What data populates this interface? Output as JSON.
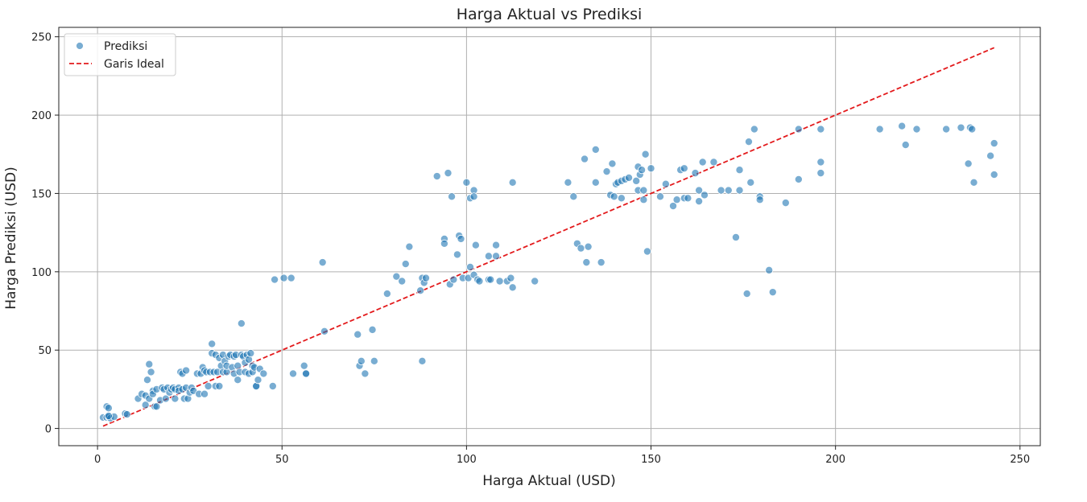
{
  "chart_data": {
    "type": "scatter",
    "title": "Harga Aktual vs Prediksi",
    "xlabel": "Harga Aktual (USD)",
    "ylabel": "Harga Prediksi (USD)",
    "xlim": [
      -10.5,
      255.5
    ],
    "ylim": [
      -11,
      256
    ],
    "xticks": [
      0,
      50,
      100,
      150,
      200,
      250
    ],
    "yticks": [
      0,
      50,
      100,
      150,
      200,
      250
    ],
    "grid": true,
    "legend_position": "top-left",
    "series": [
      {
        "name": "Prediksi",
        "type": "scatter",
        "color": "#1f77b4",
        "points": [
          [
            1.5,
            7
          ],
          [
            2.5,
            7
          ],
          [
            3,
            7.5
          ],
          [
            2.5,
            14
          ],
          [
            3,
            13
          ],
          [
            3.5,
            6.5
          ],
          [
            4.5,
            7.5
          ],
          [
            3,
            8
          ],
          [
            7.5,
            9.5
          ],
          [
            8,
            9
          ],
          [
            11,
            19
          ],
          [
            12,
            22
          ],
          [
            13,
            21
          ],
          [
            13,
            15
          ],
          [
            13.5,
            31
          ],
          [
            14,
            41
          ],
          [
            14.5,
            36
          ],
          [
            14,
            19
          ],
          [
            15,
            24
          ],
          [
            15,
            22
          ],
          [
            15.5,
            14
          ],
          [
            16,
            25
          ],
          [
            16,
            14
          ],
          [
            17,
            18
          ],
          [
            17.5,
            26
          ],
          [
            18,
            25
          ],
          [
            18.5,
            19
          ],
          [
            19,
            26
          ],
          [
            19.5,
            23
          ],
          [
            20,
            25
          ],
          [
            20.5,
            26
          ],
          [
            21,
            25
          ],
          [
            21,
            19
          ],
          [
            22,
            26
          ],
          [
            22,
            24
          ],
          [
            22.5,
            36
          ],
          [
            23,
            25
          ],
          [
            23,
            35
          ],
          [
            23.5,
            19
          ],
          [
            24,
            37
          ],
          [
            24,
            26
          ],
          [
            24.5,
            19
          ],
          [
            25,
            23
          ],
          [
            25.5,
            26
          ],
          [
            26,
            24
          ],
          [
            27,
            35
          ],
          [
            27.5,
            22
          ],
          [
            28,
            35
          ],
          [
            28.5,
            39
          ],
          [
            29,
            22
          ],
          [
            29,
            37
          ],
          [
            29.5,
            36
          ],
          [
            30,
            27
          ],
          [
            30.5,
            36
          ],
          [
            31,
            48
          ],
          [
            31,
            54
          ],
          [
            31.5,
            36
          ],
          [
            32,
            47
          ],
          [
            32,
            27
          ],
          [
            32.5,
            36
          ],
          [
            33,
            45
          ],
          [
            33,
            27
          ],
          [
            33.5,
            40
          ],
          [
            34,
            36
          ],
          [
            34,
            47
          ],
          [
            34.5,
            43
          ],
          [
            35,
            36
          ],
          [
            35,
            40
          ],
          [
            35.5,
            46
          ],
          [
            36,
            47
          ],
          [
            36.5,
            39
          ],
          [
            37,
            35
          ],
          [
            37,
            46
          ],
          [
            37.5,
            47
          ],
          [
            38,
            40
          ],
          [
            38,
            31
          ],
          [
            38.5,
            36
          ],
          [
            39,
            67
          ],
          [
            39,
            47
          ],
          [
            39.5,
            46
          ],
          [
            40,
            42
          ],
          [
            40,
            36
          ],
          [
            40.5,
            47
          ],
          [
            41,
            35
          ],
          [
            41,
            44
          ],
          [
            41.5,
            48
          ],
          [
            42,
            36
          ],
          [
            42,
            40
          ],
          [
            42.5,
            39
          ],
          [
            43,
            27
          ],
          [
            43,
            27
          ],
          [
            43.5,
            31
          ],
          [
            44,
            38
          ],
          [
            45,
            35
          ],
          [
            47.5,
            27
          ],
          [
            48,
            95
          ],
          [
            50.5,
            96
          ],
          [
            52.5,
            96
          ],
          [
            53,
            35
          ],
          [
            56,
            40
          ],
          [
            56.5,
            35
          ],
          [
            56.5,
            35
          ],
          [
            61,
            106
          ],
          [
            61.5,
            62
          ],
          [
            70.5,
            60
          ],
          [
            71,
            40
          ],
          [
            71.5,
            43
          ],
          [
            72.5,
            35
          ],
          [
            74.5,
            63
          ],
          [
            75,
            43
          ],
          [
            78.5,
            86
          ],
          [
            81,
            97
          ],
          [
            82.5,
            94
          ],
          [
            83.5,
            105
          ],
          [
            84.5,
            116
          ],
          [
            87.5,
            88
          ],
          [
            88,
            96
          ],
          [
            88,
            43
          ],
          [
            88.5,
            93
          ],
          [
            89,
            96
          ],
          [
            92,
            161
          ],
          [
            94,
            121
          ],
          [
            94,
            118
          ],
          [
            95,
            163
          ],
          [
            95.5,
            92
          ],
          [
            96,
            148
          ],
          [
            96.5,
            95
          ],
          [
            97.5,
            111
          ],
          [
            98,
            123
          ],
          [
            98.5,
            121
          ],
          [
            99,
            96
          ],
          [
            100,
            157
          ],
          [
            100.5,
            96
          ],
          [
            101,
            103
          ],
          [
            101,
            147
          ],
          [
            102,
            152
          ],
          [
            102,
            148
          ],
          [
            102,
            98
          ],
          [
            102.5,
            117
          ],
          [
            103,
            95
          ],
          [
            103.5,
            94
          ],
          [
            106,
            110
          ],
          [
            106,
            95
          ],
          [
            106.5,
            95
          ],
          [
            108,
            110
          ],
          [
            108,
            117
          ],
          [
            109,
            94
          ],
          [
            111,
            94
          ],
          [
            112,
            96
          ],
          [
            112.5,
            90
          ],
          [
            112.5,
            157
          ],
          [
            118.5,
            94
          ],
          [
            127.5,
            157
          ],
          [
            129,
            148
          ],
          [
            130,
            118
          ],
          [
            131,
            115
          ],
          [
            132,
            172
          ],
          [
            132.5,
            106
          ],
          [
            133,
            116
          ],
          [
            135,
            178
          ],
          [
            135,
            157
          ],
          [
            136.5,
            106
          ],
          [
            138,
            164
          ],
          [
            139,
            149
          ],
          [
            139.5,
            169
          ],
          [
            140,
            148
          ],
          [
            140.5,
            156
          ],
          [
            141,
            157
          ],
          [
            142,
            147
          ],
          [
            142,
            158
          ],
          [
            143,
            159
          ],
          [
            144,
            160
          ],
          [
            146,
            158
          ],
          [
            146.5,
            152
          ],
          [
            146.5,
            167
          ],
          [
            147,
            162
          ],
          [
            147.5,
            165
          ],
          [
            148,
            152
          ],
          [
            148,
            146
          ],
          [
            148.5,
            175
          ],
          [
            149,
            113
          ],
          [
            150,
            166
          ],
          [
            152.5,
            148
          ],
          [
            154,
            156
          ],
          [
            156,
            142
          ],
          [
            157,
            146
          ],
          [
            158,
            165
          ],
          [
            159,
            147
          ],
          [
            159,
            166
          ],
          [
            160,
            147
          ],
          [
            162,
            163
          ],
          [
            163,
            145
          ],
          [
            163,
            152
          ],
          [
            164,
            170
          ],
          [
            164.5,
            149
          ],
          [
            167,
            170
          ],
          [
            169,
            152
          ],
          [
            171,
            152
          ],
          [
            173,
            122
          ],
          [
            174,
            152
          ],
          [
            174,
            165
          ],
          [
            176,
            86
          ],
          [
            176.5,
            183
          ],
          [
            177,
            157
          ],
          [
            178,
            191
          ],
          [
            179.5,
            148
          ],
          [
            179.5,
            146
          ],
          [
            182,
            101
          ],
          [
            183,
            87
          ],
          [
            186.5,
            144
          ],
          [
            190,
            191
          ],
          [
            190,
            159
          ],
          [
            196,
            191
          ],
          [
            196,
            170
          ],
          [
            196,
            163
          ],
          [
            212,
            191
          ],
          [
            218,
            193
          ],
          [
            219,
            181
          ],
          [
            222,
            191
          ],
          [
            230,
            191
          ],
          [
            234,
            192
          ],
          [
            236,
            169
          ],
          [
            236.5,
            192
          ],
          [
            237,
            191
          ],
          [
            237.5,
            157
          ],
          [
            242,
            174
          ],
          [
            243,
            182
          ],
          [
            243,
            162
          ]
        ]
      },
      {
        "name": "Garis Ideal",
        "type": "line",
        "style": "dashed",
        "color": "#e31a1c",
        "points": [
          [
            1.5,
            1.5
          ],
          [
            243,
            243
          ]
        ]
      }
    ]
  }
}
